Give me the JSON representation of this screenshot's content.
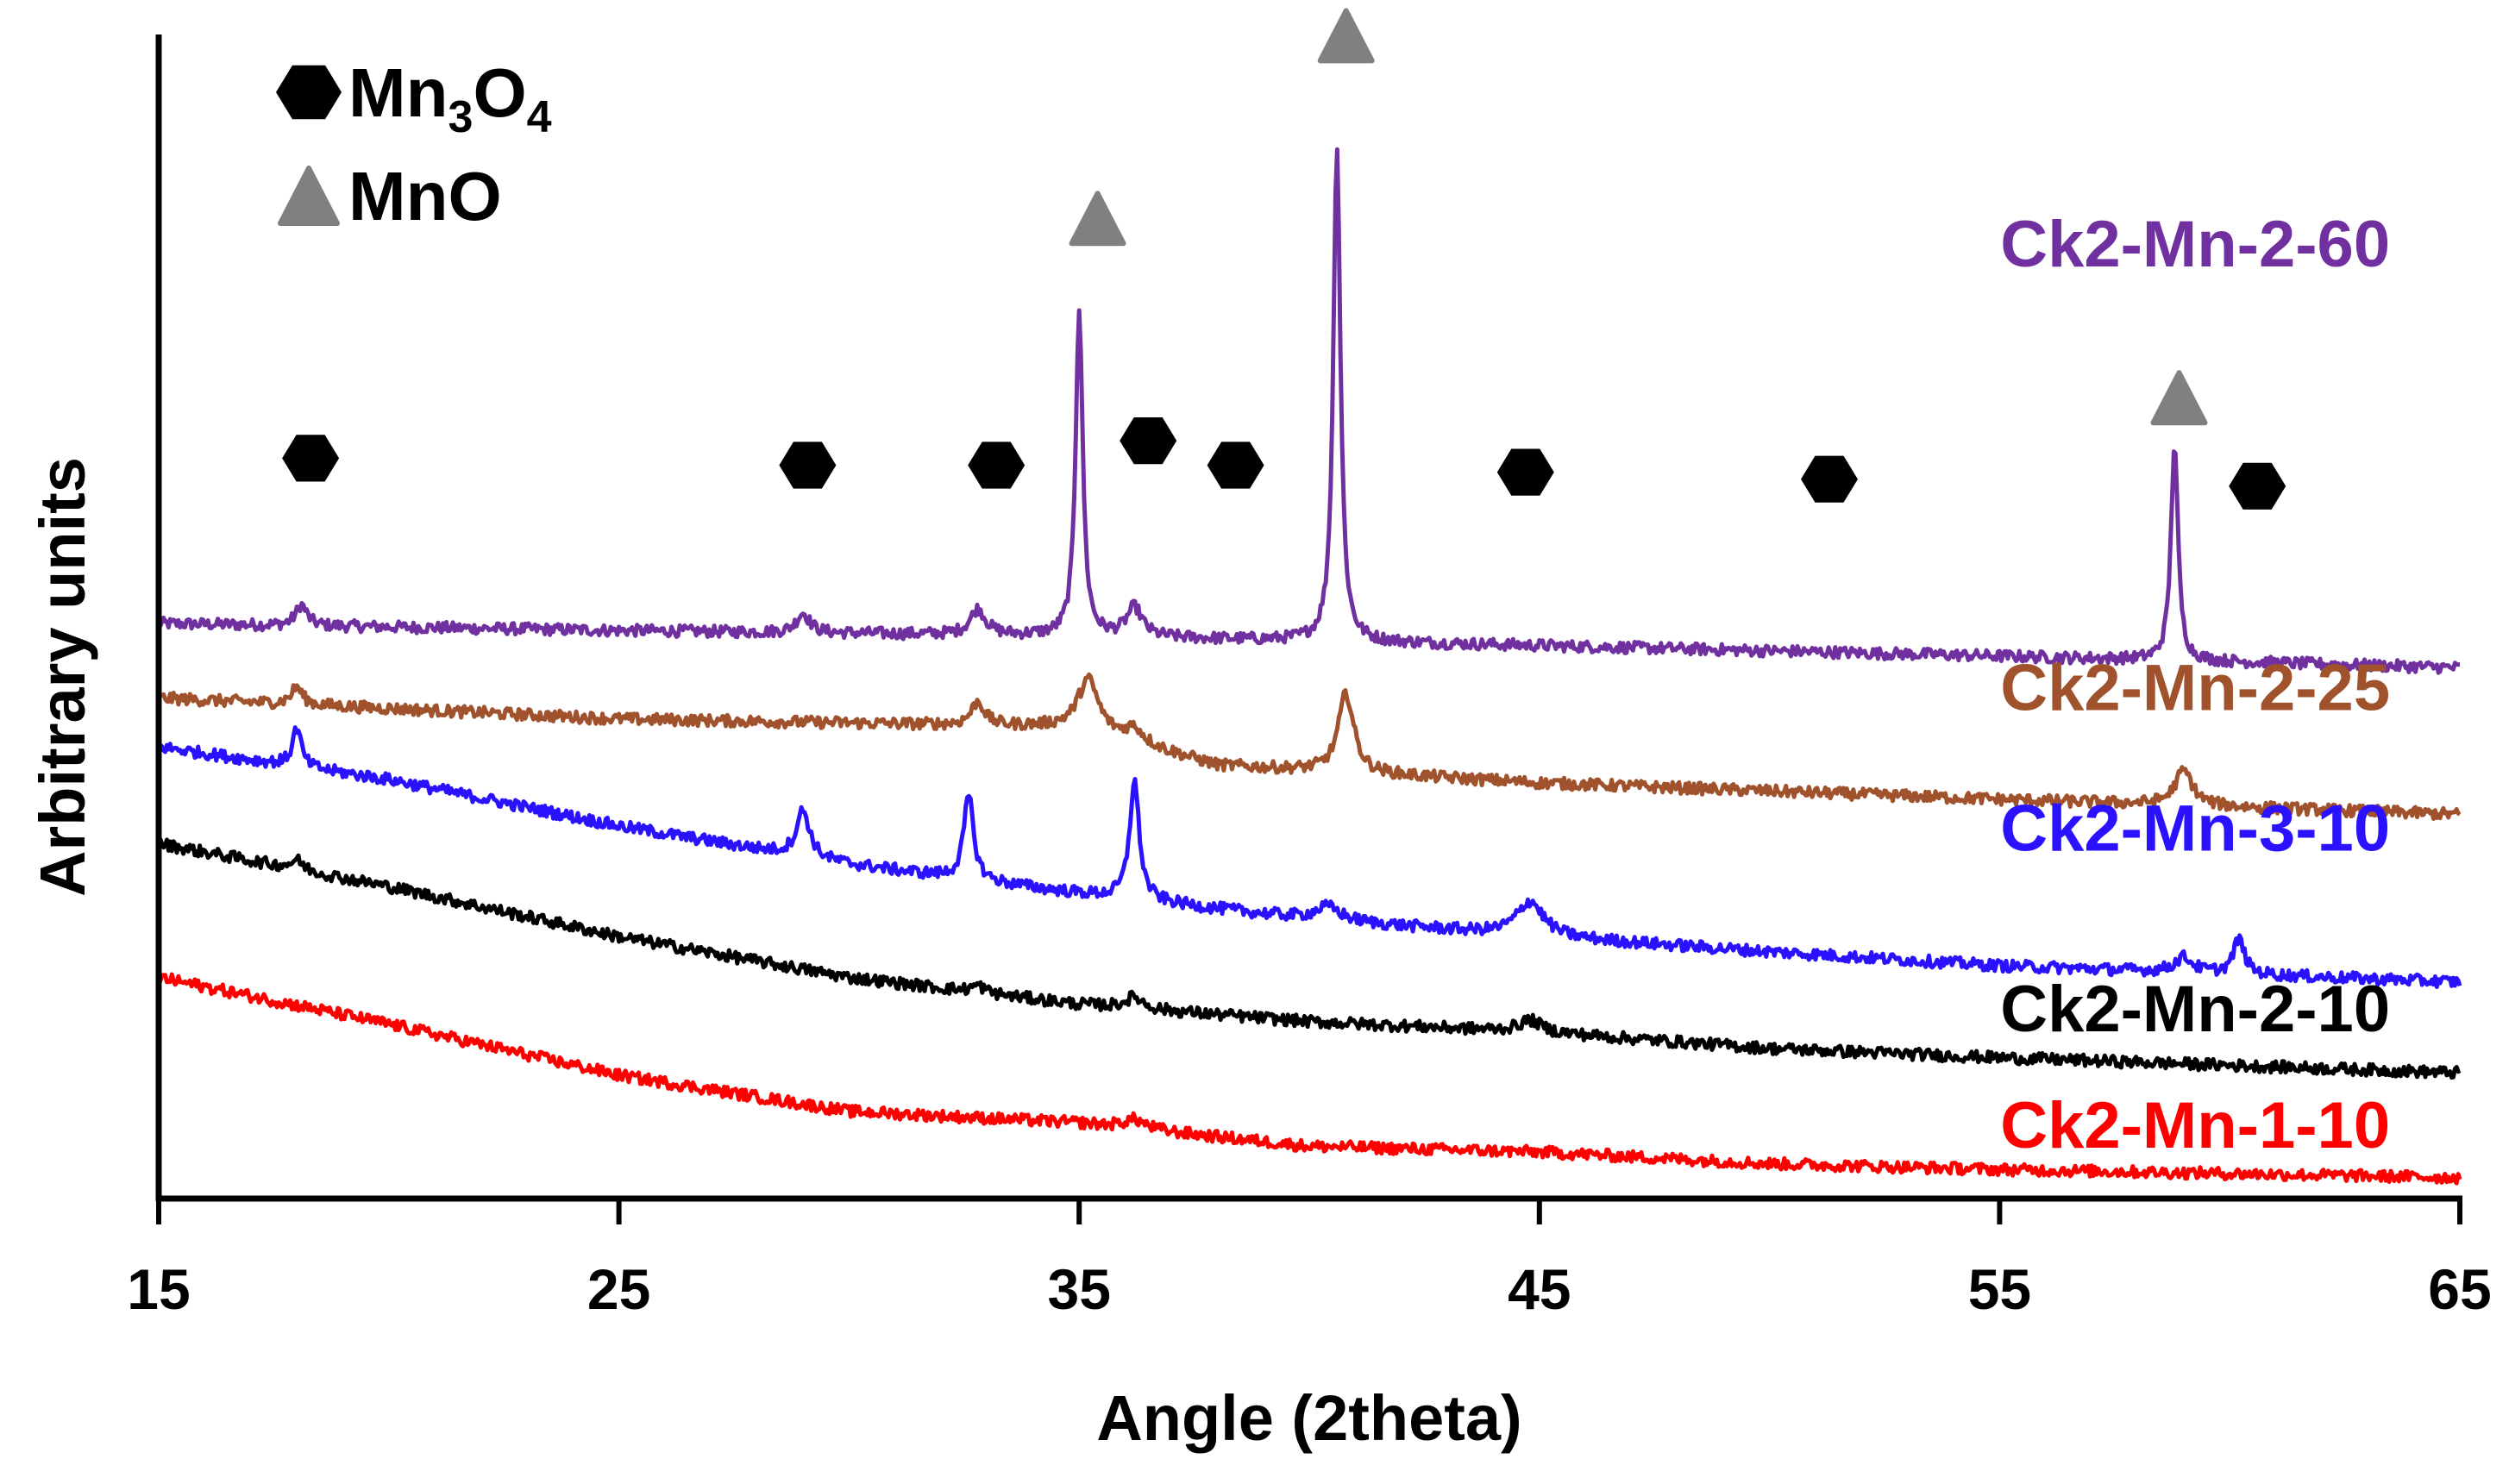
{
  "chart_data": {
    "type": "line",
    "title": "",
    "xlabel": "Angle (2theta)",
    "ylabel": "Arbitrary units",
    "xlim": [
      15,
      65
    ],
    "ylim": [
      0,
      1
    ],
    "xticks": [
      15,
      25,
      35,
      45,
      55,
      65
    ],
    "grid": false,
    "legend": {
      "position": "top-left",
      "entries": [
        {
          "marker": "hexagon",
          "color": "#000000",
          "base": "Mn",
          "sub1": "3",
          "mid": "O",
          "sub2": "4"
        },
        {
          "marker": "triangle",
          "color": "#808080",
          "base": "MnO",
          "sub1": "",
          "mid": "",
          "sub2": ""
        }
      ]
    },
    "series": [
      {
        "name": "Ck2-Mn-2-60",
        "color": "#7030A0",
        "label_x": 58.5,
        "label_y": 0.82,
        "baseline": [
          [
            15,
            0.494
          ],
          [
            25,
            0.488
          ],
          [
            35,
            0.483
          ],
          [
            45,
            0.475
          ],
          [
            55,
            0.466
          ],
          [
            65,
            0.456
          ]
        ],
        "peaks": [
          {
            "x": 18.1,
            "h": 0.018,
            "w": 0.25
          },
          {
            "x": 29.0,
            "h": 0.017,
            "w": 0.3
          },
          {
            "x": 32.8,
            "h": 0.022,
            "w": 0.35
          },
          {
            "x": 35.0,
            "h": 0.282,
            "w": 0.16
          },
          {
            "x": 36.2,
            "h": 0.025,
            "w": 0.35
          },
          {
            "x": 40.6,
            "h": 0.428,
            "w": 0.16
          },
          {
            "x": 58.8,
            "h": 0.187,
            "w": 0.16
          }
        ]
      },
      {
        "name": "Ck2-Mn-2-25",
        "color": "#A0522D",
        "label_x": 58.5,
        "label_y": 0.439,
        "baseline": [
          [
            15,
            0.43
          ],
          [
            25,
            0.412
          ],
          [
            35,
            0.405
          ],
          [
            38,
            0.372
          ],
          [
            45,
            0.357
          ],
          [
            55,
            0.343
          ],
          [
            65,
            0.33
          ]
        ],
        "peaks": [
          {
            "x": 18.0,
            "h": 0.015,
            "w": 0.25
          },
          {
            "x": 32.8,
            "h": 0.02,
            "w": 0.3
          },
          {
            "x": 35.2,
            "h": 0.043,
            "w": 0.45
          },
          {
            "x": 36.2,
            "h": 0.012,
            "w": 0.4
          },
          {
            "x": 40.8,
            "h": 0.068,
            "w": 0.35
          },
          {
            "x": 59.0,
            "h": 0.03,
            "w": 0.4
          }
        ]
      },
      {
        "name": "Ck2-Mn-3-10",
        "color": "#2B12FF",
        "label_x": 58.5,
        "label_y": 0.318,
        "baseline": [
          [
            15,
            0.388
          ],
          [
            20,
            0.36
          ],
          [
            25,
            0.32
          ],
          [
            30,
            0.287
          ],
          [
            35,
            0.262
          ],
          [
            40,
            0.24
          ],
          [
            45,
            0.225
          ],
          [
            50,
            0.212
          ],
          [
            55,
            0.2
          ],
          [
            65,
            0.186
          ]
        ],
        "peaks": [
          {
            "x": 18.0,
            "h": 0.033,
            "w": 0.2
          },
          {
            "x": 29.0,
            "h": 0.04,
            "w": 0.3
          },
          {
            "x": 32.6,
            "h": 0.072,
            "w": 0.22
          },
          {
            "x": 36.2,
            "h": 0.102,
            "w": 0.22
          },
          {
            "x": 40.4,
            "h": 0.012,
            "w": 0.6
          },
          {
            "x": 44.8,
            "h": 0.03,
            "w": 0.6
          },
          {
            "x": 59.0,
            "h": 0.013,
            "w": 0.4
          },
          {
            "x": 60.2,
            "h": 0.03,
            "w": 0.25
          }
        ]
      },
      {
        "name": "Ck2-Mn-2-10",
        "color": "#000000",
        "label_x": 58.5,
        "label_y": 0.163,
        "baseline": [
          [
            15,
            0.305
          ],
          [
            20,
            0.268
          ],
          [
            25,
            0.225
          ],
          [
            30,
            0.19
          ],
          [
            35,
            0.167
          ],
          [
            40,
            0.152
          ],
          [
            45,
            0.143
          ],
          [
            50,
            0.129
          ],
          [
            55,
            0.121
          ],
          [
            65,
            0.108
          ]
        ],
        "peaks": [
          {
            "x": 18.0,
            "h": 0.008,
            "w": 0.3
          },
          {
            "x": 32.8,
            "h": 0.006,
            "w": 0.3
          },
          {
            "x": 36.2,
            "h": 0.01,
            "w": 0.4
          },
          {
            "x": 44.8,
            "h": 0.01,
            "w": 0.5
          }
        ]
      },
      {
        "name": "Ck2-Mn-1-10",
        "color": "#FF0000",
        "label_x": 58.5,
        "label_y": 0.063,
        "baseline": [
          [
            15,
            0.19
          ],
          [
            20,
            0.15
          ],
          [
            25,
            0.106
          ],
          [
            30,
            0.075
          ],
          [
            35,
            0.065
          ],
          [
            40,
            0.045
          ],
          [
            45,
            0.04
          ],
          [
            50,
            0.03
          ],
          [
            55,
            0.025
          ],
          [
            65,
            0.018
          ]
        ],
        "peaks": [
          {
            "x": 36.2,
            "h": 0.008,
            "w": 0.5
          }
        ]
      }
    ],
    "markers": [
      {
        "phase": "Mn3O4",
        "shape": "hexagon",
        "color": "#000000",
        "x": 18.3,
        "y": 0.636
      },
      {
        "phase": "Mn3O4",
        "shape": "hexagon",
        "color": "#000000",
        "x": 29.1,
        "y": 0.63
      },
      {
        "phase": "Mn3O4",
        "shape": "hexagon",
        "color": "#000000",
        "x": 33.2,
        "y": 0.63
      },
      {
        "phase": "Mn3O4",
        "shape": "hexagon",
        "color": "#000000",
        "x": 36.5,
        "y": 0.651
      },
      {
        "phase": "Mn3O4",
        "shape": "hexagon",
        "color": "#000000",
        "x": 38.4,
        "y": 0.63
      },
      {
        "phase": "Mn3O4",
        "shape": "hexagon",
        "color": "#000000",
        "x": 44.7,
        "y": 0.624
      },
      {
        "phase": "Mn3O4",
        "shape": "hexagon",
        "color": "#000000",
        "x": 51.3,
        "y": 0.618
      },
      {
        "phase": "Mn3O4",
        "shape": "hexagon",
        "color": "#000000",
        "x": 60.6,
        "y": 0.612
      },
      {
        "phase": "MnO",
        "shape": "triangle",
        "color": "#808080",
        "x": 35.4,
        "y": 0.842
      },
      {
        "phase": "MnO",
        "shape": "triangle",
        "color": "#808080",
        "x": 40.8,
        "y": 0.999
      },
      {
        "phase": "MnO",
        "shape": "triangle",
        "color": "#808080",
        "x": 58.9,
        "y": 0.688
      }
    ]
  }
}
